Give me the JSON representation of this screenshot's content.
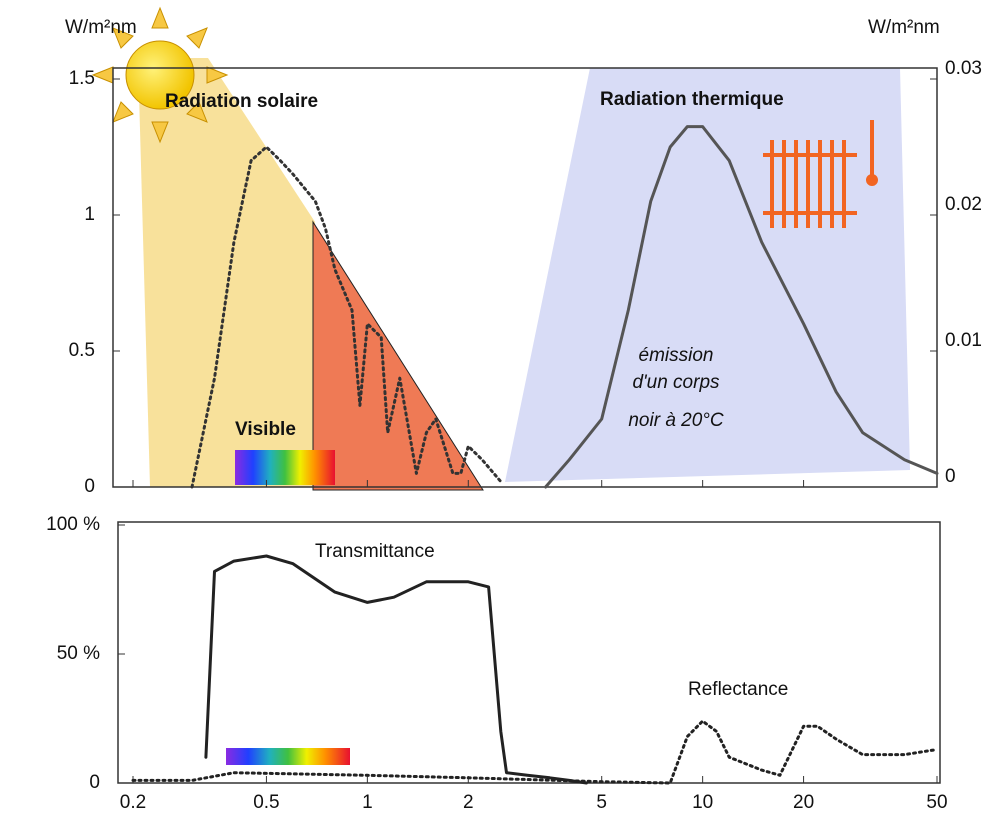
{
  "chart_data": [
    {
      "type": "line",
      "ylabel": "W/m²nm",
      "y2label": "W/m²nm",
      "xlim": [
        0.2,
        50
      ],
      "xticks": [
        0.2,
        0.5,
        1,
        2,
        5,
        10,
        20,
        50
      ],
      "xlog": true,
      "ylim": [
        0,
        1.5
      ],
      "yticks": [
        0,
        0.5,
        1,
        1.5
      ],
      "y2lim": [
        0,
        0.03
      ],
      "y2ticks": [
        0,
        0.01,
        0.02,
        0.03
      ],
      "annotations": [
        "Visible",
        "émission",
        "d'un corps",
        "noir à 20°C"
      ],
      "series": [
        {
          "name": "Radiation solaire",
          "color": "#333333",
          "style": "dotted",
          "x": [
            0.3,
            0.35,
            0.4,
            0.45,
            0.5,
            0.55,
            0.6,
            0.7,
            0.75,
            0.8,
            0.9,
            0.95,
            1.0,
            1.1,
            1.15,
            1.25,
            1.4,
            1.5,
            1.6,
            1.8,
            1.9,
            2.0,
            2.2,
            2.5
          ],
          "values": [
            0,
            0.4,
            0.9,
            1.2,
            1.25,
            1.2,
            1.15,
            1.05,
            0.95,
            0.8,
            0.65,
            0.3,
            0.6,
            0.55,
            0.2,
            0.4,
            0.05,
            0.2,
            0.25,
            0.05,
            0.05,
            0.15,
            0.1,
            0.02
          ]
        },
        {
          "name": "Radiation thermique",
          "color": "#555555",
          "style": "solid",
          "axis": "y2",
          "x": [
            3.4,
            4,
            5,
            6,
            7,
            8,
            9,
            10,
            12,
            15,
            20,
            25,
            30,
            40,
            50
          ],
          "values": [
            0,
            0.002,
            0.005,
            0.013,
            0.021,
            0.025,
            0.0265,
            0.0265,
            0.024,
            0.018,
            0.012,
            0.007,
            0.004,
            0.002,
            0.001
          ]
        }
      ]
    },
    {
      "type": "line",
      "xlim": [
        0.2,
        50
      ],
      "xticks": [
        0.2,
        0.5,
        1,
        2,
        5,
        10,
        20,
        50
      ],
      "xlog": true,
      "ylim": [
        0,
        100
      ],
      "yticks": [
        0,
        {
          "value": 50,
          "label": "50 %"
        },
        {
          "value": 100,
          "label": "100 %"
        }
      ],
      "series": [
        {
          "name": "Transmittance",
          "color": "#222222",
          "style": "solid",
          "x": [
            0.33,
            0.35,
            0.4,
            0.5,
            0.6,
            0.8,
            1,
            1.2,
            1.5,
            2,
            2.3,
            2.5,
            2.6,
            3,
            3.5,
            4,
            4.5
          ],
          "values": [
            10,
            82,
            86,
            88,
            85,
            74,
            70,
            72,
            78,
            78,
            76,
            20,
            4,
            3,
            2,
            1,
            0
          ]
        },
        {
          "name": "Reflectance",
          "color": "#222222",
          "style": "dotted",
          "x": [
            0.2,
            0.3,
            0.4,
            1,
            2,
            5,
            8,
            9,
            10,
            11,
            12,
            15,
            17,
            20,
            22,
            25,
            30,
            40,
            50
          ],
          "values": [
            1,
            1,
            4,
            3,
            2,
            0.5,
            0,
            18,
            24,
            20,
            10,
            5,
            3,
            22,
            22,
            17,
            11,
            11,
            13
          ]
        }
      ]
    }
  ]
}
